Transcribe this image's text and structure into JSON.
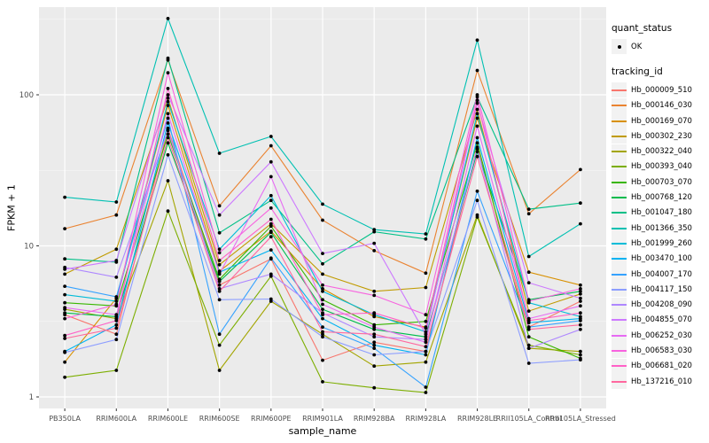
{
  "colors": {
    "page_bg": "#FFFFFF",
    "panel_bg": "#EBEBEB",
    "grid_major": "#FFFFFF",
    "grid_minor": "#FFFFFF",
    "tick_text": "#4D4D4D",
    "tick_mark": "#333333",
    "axis_title": "#000000",
    "legend_key_bg": "#F2F2F2",
    "point_color": "#000000"
  },
  "legend": {
    "quant_status_title": "quant_status",
    "quant_status_items": [
      {
        "label": "OK"
      }
    ],
    "tracking_id_title": "tracking_id"
  },
  "chart_data": {
    "type": "line",
    "title": "",
    "xlabel": "sample_name",
    "ylabel": "FPKM + 1",
    "y_scale": "log10",
    "ylim": [
      0.82,
      381
    ],
    "grid": true,
    "legend_position": "right",
    "point_marker": {
      "shape": "dot",
      "color": "#000000"
    },
    "x_categories": [
      "PB350LA",
      "RRIM600LA",
      "RRIM600LE",
      "RRIM600SE",
      "RRIM600PE",
      "RRIM901LA",
      "RRIM928BA",
      "RRIM928LA",
      "RRIM928LE",
      "RRII105LA_Control",
      "RRII105LA_Stressed"
    ],
    "y_ticks": [
      {
        "value": 1,
        "label": "1"
      },
      {
        "value": 10,
        "label": "10"
      },
      {
        "value": 100,
        "label": "100"
      }
    ],
    "y_minor_ticks": [
      3.162,
      31.62,
      316.2
    ],
    "series": [
      {
        "name": "Hb_000009_510",
        "color": "#F8766D",
        "values": [
          3.5,
          2.6,
          60,
          5.5,
          8.2,
          1.75,
          2.3,
          2.0,
          45,
          2.9,
          4.3
        ]
      },
      {
        "name": "Hb_000146_030",
        "color": "#EA8331",
        "values": [
          13,
          16,
          170,
          18.4,
          46,
          14.8,
          9.3,
          6.6,
          145,
          16.3,
          32
        ]
      },
      {
        "name": "Hb_000169_070",
        "color": "#D89000",
        "values": [
          1.7,
          4.5,
          85,
          6.8,
          12.5,
          5.2,
          3.4,
          2.9,
          70,
          6.7,
          5.5
        ]
      },
      {
        "name": "Hb_000302_230",
        "color": "#C09B00",
        "values": [
          6.5,
          9.5,
          95,
          7.5,
          14,
          6.5,
          5.0,
          5.3,
          80,
          3.7,
          4.8
        ]
      },
      {
        "name": "Hb_000322_040",
        "color": "#A3A500",
        "values": [
          3.8,
          3.3,
          27,
          1.5,
          4.3,
          2.6,
          1.6,
          1.7,
          16,
          2.1,
          2.0
        ]
      },
      {
        "name": "Hb_000393_040",
        "color": "#7CAE00",
        "values": [
          1.35,
          1.5,
          17,
          2.2,
          6.3,
          1.26,
          1.15,
          1.07,
          15.5,
          2.2,
          1.9
        ]
      },
      {
        "name": "Hb_000703_070",
        "color": "#39B600",
        "values": [
          4.2,
          4.0,
          55,
          6.0,
          13.5,
          4.4,
          3.0,
          3.16,
          48,
          2.5,
          1.8
        ]
      },
      {
        "name": "Hb_000768_120",
        "color": "#00BB4E",
        "values": [
          3.6,
          3.4,
          48,
          5.8,
          12.3,
          3.8,
          2.8,
          2.5,
          42,
          4.4,
          5.0
        ]
      },
      {
        "name": "Hb_001047_180",
        "color": "#00C087",
        "values": [
          8.2,
          7.8,
          175,
          12.2,
          20,
          7.6,
          12.4,
          11.1,
          97,
          17.5,
          19.2
        ]
      },
      {
        "name": "Hb_001366_350",
        "color": "#00C0B2",
        "values": [
          21,
          19.5,
          320,
          41,
          53,
          18.9,
          12.8,
          12.0,
          230,
          8.5,
          14
        ]
      },
      {
        "name": "Hb_001999_260",
        "color": "#00BCD8",
        "values": [
          4.75,
          4.3,
          90,
          9.5,
          21.5,
          5.0,
          3.5,
          2.7,
          75,
          4.2,
          3.4
        ]
      },
      {
        "name": "Hb_003470_100",
        "color": "#00B3F2",
        "values": [
          2.0,
          3.0,
          65,
          6.7,
          9.4,
          3.3,
          2.2,
          1.9,
          52,
          3.1,
          3.3
        ]
      },
      {
        "name": "Hb_004007_170",
        "color": "#35A2FF",
        "values": [
          5.4,
          4.6,
          70,
          2.6,
          8.3,
          2.9,
          2.1,
          1.16,
          23,
          2.9,
          3.2
        ]
      },
      {
        "name": "Hb_004117_150",
        "color": "#8C9DFF",
        "values": [
          1.97,
          2.4,
          40,
          4.4,
          4.45,
          2.5,
          1.9,
          2.0,
          20,
          1.67,
          1.76
        ]
      },
      {
        "name": "Hb_004208_090",
        "color": "#AE87FF",
        "values": [
          7.2,
          6.2,
          58,
          5.2,
          6.5,
          3.6,
          2.5,
          2.4,
          44,
          2.1,
          2.8
        ]
      },
      {
        "name": "Hb_004855_070",
        "color": "#CD79FF",
        "values": [
          7.0,
          8.0,
          100,
          16,
          36,
          8.9,
          10.4,
          2.6,
          88,
          5.7,
          4.5
        ]
      },
      {
        "name": "Hb_006252_030",
        "color": "#E76BF3",
        "values": [
          3.9,
          3.5,
          75,
          6.5,
          28.7,
          4.1,
          2.9,
          2.3,
          62,
          3.3,
          4.0
        ]
      },
      {
        "name": "Hb_006583_030",
        "color": "#F863DF",
        "values": [
          3.3,
          4.1,
          140,
          9.0,
          17.8,
          5.5,
          4.7,
          3.5,
          100,
          4.3,
          5.2
        ]
      },
      {
        "name": "Hb_006681_020",
        "color": "#FF61C7",
        "values": [
          2.55,
          3.2,
          110,
          8.0,
          15,
          3.5,
          3.6,
          2.85,
          92,
          3.2,
          3.6
        ]
      },
      {
        "name": "Hb_137216_010",
        "color": "#FF689F",
        "values": [
          2.44,
          2.85,
          52,
          5.0,
          11.5,
          2.7,
          2.6,
          2.15,
          39,
          2.8,
          3.0
        ]
      }
    ]
  }
}
